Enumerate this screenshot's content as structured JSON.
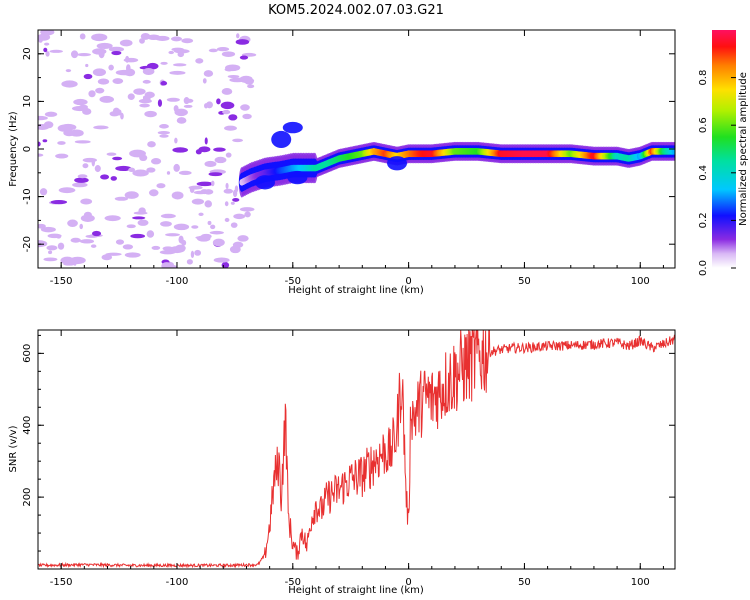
{
  "title": "KOM5.2024.002.07.03.G21",
  "chart_data": [
    {
      "type": "heatmap",
      "xlabel": "Height of straight line (km)",
      "ylabel": "Frequency (Hz)",
      "xlim": [
        -160,
        115
      ],
      "ylim": [
        -25,
        25
      ],
      "x_ticks": [
        -150,
        -100,
        -50,
        0,
        50,
        100
      ],
      "y_ticks": [
        -20,
        -10,
        0,
        10,
        20
      ],
      "colorbar": {
        "label": "Normalized spectral amplitude",
        "range": [
          0,
          1
        ],
        "ticks": [
          "0.0",
          "0.2",
          "0.4",
          "0.6",
          "0.8"
        ]
      },
      "trace": {
        "x": [
          -72,
          -68,
          -62,
          -55,
          -50,
          -45,
          -40,
          -35,
          -30,
          -25,
          -20,
          -15,
          -10,
          -5,
          0,
          5,
          10,
          20,
          30,
          40,
          50,
          60,
          70,
          80,
          90,
          95,
          100,
          105,
          110,
          115
        ],
        "freq": [
          -7,
          -6,
          -5,
          -4.5,
          -4,
          -4,
          -4,
          -3,
          -2,
          -1.5,
          -1,
          -0.5,
          -1,
          -1.5,
          -1,
          -1,
          -1,
          -0.5,
          -0.5,
          -1,
          -1,
          -1,
          -1,
          -1.5,
          -1.5,
          -2,
          -1.5,
          -0.5,
          -0.5,
          -0.5
        ],
        "amplitude": [
          0.05,
          0.1,
          0.15,
          0.25,
          0.3,
          0.35,
          0.45,
          0.45,
          0.5,
          0.55,
          0.6,
          0.8,
          0.9,
          0.75,
          0.85,
          0.92,
          0.95,
          0.6,
          0.55,
          0.95,
          0.98,
          0.98,
          0.6,
          0.95,
          0.4,
          0.45,
          0.3,
          0.9,
          0.5,
          0.3
        ]
      },
      "noise_region_x": [
        -160,
        -68
      ]
    },
    {
      "type": "line",
      "xlabel": "Height of straight line (km)",
      "ylabel": "SNR (v/v)",
      "xlim": [
        -160,
        115
      ],
      "ylim": [
        0,
        665
      ],
      "x_ticks": [
        -150,
        -100,
        -50,
        0,
        50,
        100
      ],
      "y_ticks": [
        200,
        400,
        600
      ],
      "series": [
        {
          "color": "#e83030",
          "x": [
            -160,
            -140,
            -120,
            -100,
            -80,
            -65,
            -62,
            -60,
            -58,
            -56,
            -55,
            -54,
            -53,
            -52,
            -50,
            -48,
            -46,
            -44,
            -42,
            -40,
            -38,
            -35,
            -30,
            -25,
            -20,
            -15,
            -10,
            -8,
            -6,
            -5,
            -3,
            -2,
            -1,
            0,
            1,
            2,
            5,
            8,
            10,
            15,
            20,
            25,
            30,
            35,
            40,
            45,
            50,
            60,
            70,
            80,
            90,
            95,
            100,
            105,
            110,
            115
          ],
          "y": [
            10,
            12,
            10,
            10,
            10,
            12,
            40,
            120,
            250,
            300,
            200,
            330,
            420,
            150,
            70,
            40,
            110,
            60,
            140,
            180,
            160,
            200,
            220,
            250,
            260,
            300,
            330,
            320,
            360,
            390,
            540,
            380,
            200,
            120,
            480,
            420,
            460,
            480,
            470,
            510,
            540,
            570,
            590,
            605,
            610,
            615,
            615,
            620,
            622,
            625,
            630,
            620,
            635,
            615,
            625,
            640
          ]
        }
      ]
    }
  ]
}
